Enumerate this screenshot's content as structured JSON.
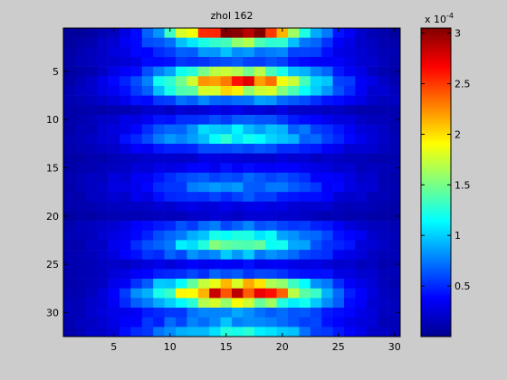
{
  "chart_data": {
    "type": "heatmap",
    "title": "zhol 162",
    "xlabel": "",
    "ylabel": "",
    "x_range": [
      0.5,
      30.5
    ],
    "y_range": [
      0.5,
      32.5
    ],
    "y_reversed": true,
    "x_ticks": [
      5,
      10,
      15,
      20,
      25,
      30
    ],
    "y_ticks": [
      5,
      10,
      15,
      20,
      25,
      30
    ],
    "colormap": "jet",
    "grid": false,
    "colorbar": {
      "placement": "right",
      "range": [
        0.0,
        3.05
      ],
      "ticks": [
        0.5,
        1,
        1.5,
        2,
        2.5,
        3
      ],
      "exponent_label": "x 10",
      "exponent_power": "-4"
    },
    "rows": 32,
    "cols": 30,
    "value_units": "x 10^-4",
    "row_profiles": [
      {
        "row": 1,
        "peak": 3.0,
        "width": 0.5
      },
      {
        "row": 2,
        "peak": 1.4,
        "width": 0.6
      },
      {
        "row": 3,
        "peak": 0.8,
        "width": 0.7
      },
      {
        "row": 4,
        "peak": 0.55,
        "width": 0.8
      },
      {
        "row": 5,
        "peak": 1.6,
        "width": 0.6
      },
      {
        "row": 6,
        "peak": 2.45,
        "width": 0.6
      },
      {
        "row": 7,
        "peak": 1.8,
        "width": 0.65
      },
      {
        "row": 8,
        "peak": 0.7,
        "width": 0.8
      },
      {
        "row": 9,
        "peak": 0.2,
        "width": 0.9
      },
      {
        "row": 10,
        "peak": 0.55,
        "width": 0.8
      },
      {
        "row": 11,
        "peak": 0.95,
        "width": 0.7
      },
      {
        "row": 12,
        "peak": 1.1,
        "width": 0.7
      },
      {
        "row": 13,
        "peak": 0.55,
        "width": 0.8
      },
      {
        "row": 14,
        "peak": 0.2,
        "width": 0.9
      },
      {
        "row": 15,
        "peak": 0.3,
        "width": 0.9
      },
      {
        "row": 16,
        "peak": 0.55,
        "width": 0.8
      },
      {
        "row": 17,
        "peak": 0.7,
        "width": 0.75
      },
      {
        "row": 18,
        "peak": 0.5,
        "width": 0.8
      },
      {
        "row": 19,
        "peak": 0.25,
        "width": 0.9
      },
      {
        "row": 20,
        "peak": 0.15,
        "width": 0.9
      },
      {
        "row": 21,
        "peak": 0.6,
        "width": 0.8
      },
      {
        "row": 22,
        "peak": 1.1,
        "width": 0.7
      },
      {
        "row": 23,
        "peak": 1.35,
        "width": 0.65
      },
      {
        "row": 24,
        "peak": 0.8,
        "width": 0.75
      },
      {
        "row": 25,
        "peak": 0.3,
        "width": 0.9
      },
      {
        "row": 26,
        "peak": 0.55,
        "width": 0.8
      },
      {
        "row": 27,
        "peak": 1.9,
        "width": 0.6
      },
      {
        "row": 28,
        "peak": 2.65,
        "width": 0.6
      },
      {
        "row": 29,
        "peak": 1.7,
        "width": 0.65
      },
      {
        "row": 30,
        "peak": 0.7,
        "width": 0.8
      },
      {
        "row": 31,
        "peak": 0.8,
        "width": 0.75
      },
      {
        "row": 32,
        "peak": 1.05,
        "width": 0.7
      }
    ]
  }
}
